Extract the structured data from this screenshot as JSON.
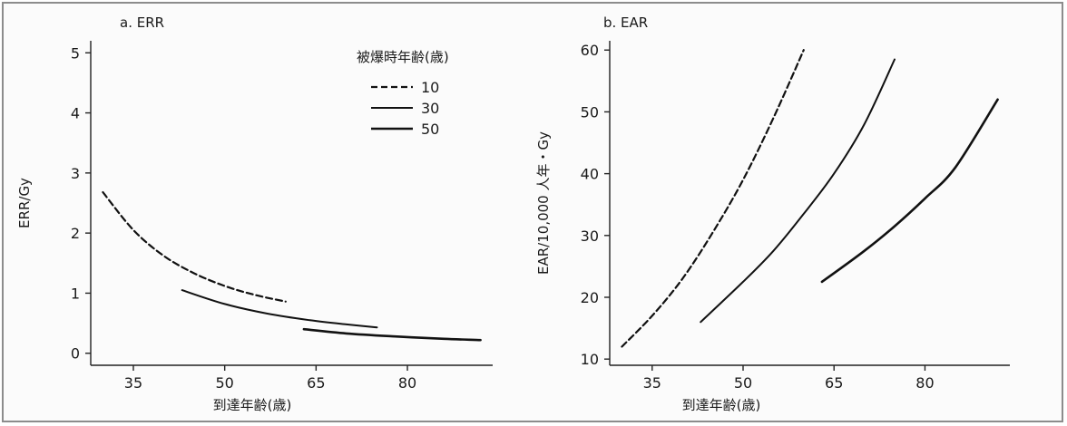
{
  "chart_data": [
    {
      "type": "line",
      "panel_label": "a.  ERR",
      "title": "",
      "xlabel": "到達年齢(歳)",
      "ylabel": "ERR/Gy",
      "xlim": [
        28,
        94
      ],
      "ylim": [
        -0.2,
        5.2
      ],
      "xticks": [
        35,
        50,
        65,
        80
      ],
      "yticks": [
        0,
        1,
        2,
        3,
        4,
        5
      ],
      "legend": {
        "title": "被爆時年齢(歳)",
        "placement": "top-right",
        "entries": [
          {
            "label": "10",
            "style": "dashed"
          },
          {
            "label": "30",
            "style": "solid-thin"
          },
          {
            "label": "50",
            "style": "solid"
          }
        ]
      },
      "series": [
        {
          "name": "10",
          "style": "dashed",
          "x": [
            30,
            35,
            40,
            45,
            50,
            55,
            60
          ],
          "y": [
            2.68,
            2.05,
            1.62,
            1.33,
            1.12,
            0.97,
            0.86
          ]
        },
        {
          "name": "30",
          "style": "solid-thin",
          "x": [
            43,
            50,
            57,
            64,
            70,
            75
          ],
          "y": [
            1.05,
            0.82,
            0.66,
            0.55,
            0.48,
            0.43
          ]
        },
        {
          "name": "50",
          "style": "solid",
          "x": [
            63,
            70,
            78,
            86,
            92
          ],
          "y": [
            0.4,
            0.33,
            0.28,
            0.24,
            0.22
          ]
        }
      ]
    },
    {
      "type": "line",
      "panel_label": "b.  EAR",
      "title": "",
      "xlabel": "到達年齢(歳)",
      "ylabel": "EAR/10,000 人年・Gy",
      "xlim": [
        28,
        94
      ],
      "ylim": [
        9,
        61.5
      ],
      "xticks": [
        35,
        50,
        65,
        80
      ],
      "yticks": [
        10,
        20,
        30,
        40,
        50,
        60
      ],
      "series": [
        {
          "name": "10",
          "style": "dashed",
          "x": [
            30,
            35,
            40,
            45,
            50,
            55,
            60
          ],
          "y": [
            12,
            17,
            23,
            30.5,
            39,
            49,
            60
          ]
        },
        {
          "name": "30",
          "style": "solid-thin",
          "x": [
            43,
            50,
            55,
            60,
            65,
            70,
            75
          ],
          "y": [
            16,
            22.5,
            27.5,
            33.5,
            40,
            48,
            58.5
          ]
        },
        {
          "name": "50",
          "style": "solid",
          "x": [
            63,
            70,
            75,
            80,
            85,
            92
          ],
          "y": [
            22.5,
            27.5,
            31.5,
            36,
            41,
            52
          ]
        }
      ]
    }
  ]
}
